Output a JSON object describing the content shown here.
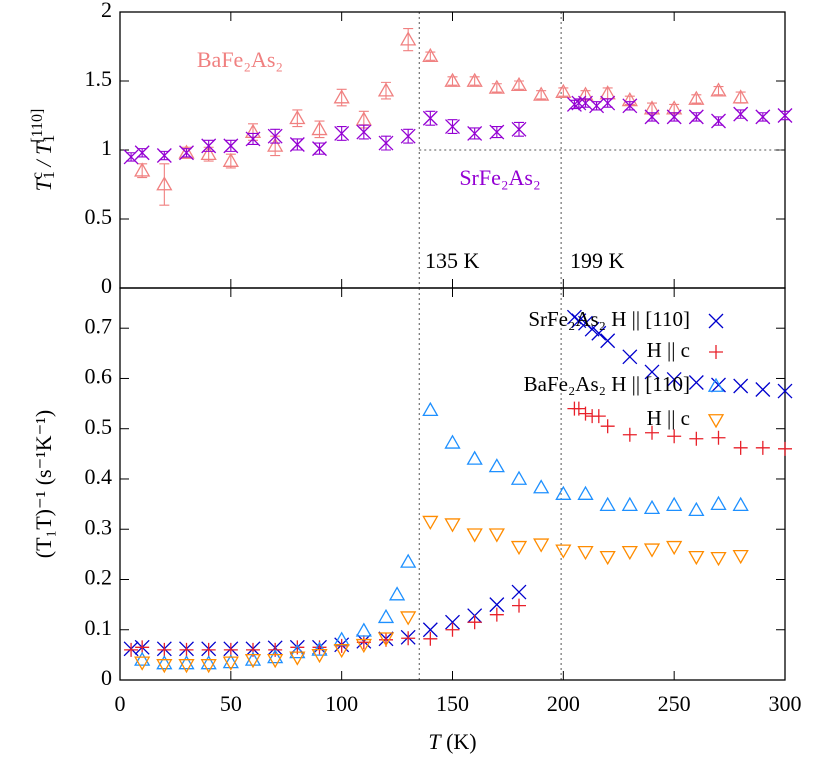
{
  "chart_data": [
    {
      "type": "scatter",
      "ylabel": [
        "T",
        "1",
        "c",
        " / T",
        "1",
        "[110]"
      ],
      "ylabel_shift": [
        "",
        "sub",
        "sup",
        "",
        "sub",
        "sup"
      ],
      "xlim": [
        0,
        300
      ],
      "xticks": [
        0,
        50,
        100,
        150,
        200,
        250,
        300
      ],
      "ylim": [
        0,
        2
      ],
      "yticks": [
        0,
        0.5,
        1,
        1.5,
        2
      ],
      "vlines": [
        135,
        199
      ],
      "hline": 1,
      "annotations": [
        "BaFe₂As₂",
        "SrFe₂As₂",
        "135 K",
        "199 K"
      ],
      "series": [
        {
          "name": "BaFe₂As₂",
          "color": "#f08080",
          "marker": "^",
          "x": [
            10,
            20,
            30,
            40,
            50,
            60,
            70,
            80,
            90,
            100,
            110,
            120,
            130,
            140,
            150,
            160,
            170,
            180,
            190,
            200,
            210,
            220,
            230,
            240,
            250,
            260,
            270,
            280
          ],
          "values": [
            0.85,
            0.75,
            0.98,
            0.97,
            0.92,
            1.13,
            1.03,
            1.23,
            1.15,
            1.38,
            1.22,
            1.43,
            1.8,
            1.68,
            1.5,
            1.5,
            1.45,
            1.47,
            1.4,
            1.42,
            1.4,
            1.41,
            1.36,
            1.3,
            1.3,
            1.37,
            1.43,
            1.38
          ],
          "errors": [
            0.05,
            0.15,
            0.04,
            0.05,
            0.05,
            0.06,
            0.07,
            0.06,
            0.06,
            0.06,
            0.06,
            0.06,
            0.08,
            0.03,
            0.03,
            0.03,
            0.03,
            0.03,
            0.03,
            0.03,
            0.03,
            0.04,
            0.03,
            0.04,
            0.03,
            0.03,
            0.03,
            0.04
          ]
        },
        {
          "name": "SrFe₂As₂",
          "color": "#9400d3",
          "marker": "x",
          "x": [
            5,
            10,
            20,
            30,
            40,
            50,
            60,
            70,
            80,
            90,
            100,
            110,
            120,
            130,
            140,
            150,
            160,
            170,
            180,
            205,
            207,
            210,
            215,
            220,
            230,
            240,
            250,
            260,
            270,
            280,
            290,
            300
          ],
          "values": [
            0.95,
            0.98,
            0.96,
            0.98,
            1.03,
            1.03,
            1.08,
            1.1,
            1.04,
            1.01,
            1.12,
            1.13,
            1.05,
            1.1,
            1.23,
            1.17,
            1.12,
            1.13,
            1.15,
            1.33,
            1.34,
            1.34,
            1.32,
            1.34,
            1.32,
            1.24,
            1.24,
            1.24,
            1.21,
            1.26,
            1.24,
            1.25
          ],
          "errors": [
            0.03,
            0.03,
            0.03,
            0.03,
            0.04,
            0.04,
            0.04,
            0.05,
            0.04,
            0.04,
            0.05,
            0.05,
            0.05,
            0.05,
            0.05,
            0.05,
            0.04,
            0.04,
            0.05,
            0.03,
            0.03,
            0.03,
            0.03,
            0.03,
            0.03,
            0.03,
            0.03,
            0.03,
            0.03,
            0.03,
            0.03,
            0.03
          ]
        }
      ]
    },
    {
      "type": "scatter",
      "xlabel": [
        "T",
        " (K)"
      ],
      "ylabel": "(T₁T)⁻¹ (s⁻¹K⁻¹)",
      "xlim": [
        0,
        300
      ],
      "xticks": [
        0,
        50,
        100,
        150,
        200,
        250,
        300
      ],
      "ylim": [
        0,
        0.78
      ],
      "yticks": [
        0,
        0.1,
        0.2,
        0.3,
        0.4,
        0.5,
        0.6,
        0.7
      ],
      "vlines": [
        135,
        199
      ],
      "series": [
        {
          "name": "SrFe₂As₂ H || [110]",
          "color": "#0000cd",
          "marker": "x",
          "x": [
            5,
            10,
            20,
            30,
            40,
            50,
            60,
            70,
            80,
            90,
            100,
            110,
            120,
            130,
            140,
            150,
            160,
            170,
            180,
            205,
            207,
            210,
            213,
            216,
            220,
            230,
            240,
            250,
            260,
            270,
            280,
            290,
            300
          ],
          "values": [
            0.062,
            0.065,
            0.062,
            0.062,
            0.062,
            0.062,
            0.062,
            0.064,
            0.065,
            0.065,
            0.07,
            0.077,
            0.082,
            0.085,
            0.1,
            0.115,
            0.128,
            0.15,
            0.175,
            0.722,
            0.715,
            0.71,
            0.698,
            0.69,
            0.675,
            0.643,
            0.613,
            0.598,
            0.592,
            0.587,
            0.585,
            0.578,
            0.575
          ]
        },
        {
          "name": "H || c",
          "color": "#e8202a",
          "marker": "+",
          "x": [
            5,
            10,
            20,
            30,
            40,
            50,
            60,
            70,
            80,
            90,
            100,
            110,
            120,
            130,
            140,
            150,
            160,
            170,
            180,
            205,
            207,
            210,
            213,
            216,
            220,
            230,
            240,
            250,
            260,
            270,
            280,
            290,
            300
          ],
          "values": [
            0.06,
            0.065,
            0.06,
            0.06,
            0.06,
            0.06,
            0.06,
            0.06,
            0.065,
            0.065,
            0.068,
            0.075,
            0.08,
            0.083,
            0.082,
            0.1,
            0.115,
            0.13,
            0.148,
            0.54,
            0.54,
            0.53,
            0.525,
            0.525,
            0.505,
            0.488,
            0.492,
            0.485,
            0.48,
            0.482,
            0.462,
            0.462,
            0.46
          ]
        },
        {
          "name": "BaFe₂As₂ H || [110]",
          "color": "#1e90ff",
          "marker": "^",
          "x": [
            10,
            20,
            30,
            40,
            50,
            60,
            70,
            80,
            90,
            100,
            110,
            120,
            125,
            130,
            140,
            150,
            160,
            170,
            180,
            190,
            200,
            210,
            220,
            230,
            240,
            250,
            260,
            270,
            280
          ],
          "values": [
            0.04,
            0.033,
            0.033,
            0.033,
            0.035,
            0.04,
            0.045,
            0.055,
            0.06,
            0.08,
            0.098,
            0.125,
            0.17,
            0.235,
            0.537,
            0.472,
            0.44,
            0.425,
            0.4,
            0.383,
            0.37,
            0.37,
            0.348,
            0.348,
            0.342,
            0.348,
            0.338,
            0.35,
            0.348
          ]
        },
        {
          "name": "H || c",
          "color": "#ff8c00",
          "marker": "v",
          "x": [
            10,
            20,
            30,
            40,
            50,
            60,
            70,
            80,
            90,
            100,
            110,
            120,
            130,
            140,
            150,
            160,
            170,
            180,
            190,
            200,
            210,
            220,
            230,
            240,
            250,
            260,
            270,
            280
          ],
          "values": [
            0.035,
            0.03,
            0.03,
            0.03,
            0.035,
            0.04,
            0.04,
            0.045,
            0.05,
            0.06,
            0.07,
            0.083,
            0.125,
            0.315,
            0.31,
            0.29,
            0.29,
            0.265,
            0.27,
            0.258,
            0.255,
            0.245,
            0.255,
            0.26,
            0.265,
            0.245,
            0.243,
            0.247
          ]
        }
      ]
    }
  ]
}
